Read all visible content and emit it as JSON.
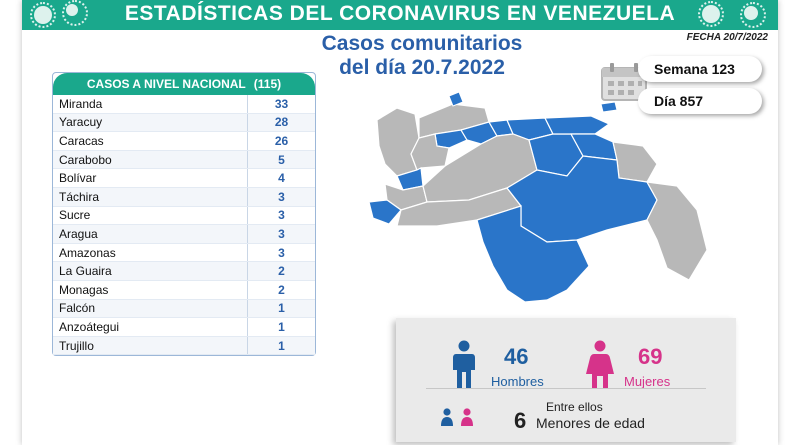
{
  "banner": {
    "title": "ESTADÍSTICAS DEL CORONAVIRUS EN VENEZUELA"
  },
  "subtitle": {
    "line1": "Casos comunitarios",
    "line2": "del día 20.7.2022"
  },
  "fecha": "FECHA 20/7/2022",
  "table": {
    "header_label": "CASOS A NIVEL NACIONAL",
    "header_total": "(115)",
    "rows": [
      {
        "state": "Miranda",
        "count": "33"
      },
      {
        "state": "Yaracuy",
        "count": "28"
      },
      {
        "state": "Caracas",
        "count": "26"
      },
      {
        "state": "Carabobo",
        "count": "5"
      },
      {
        "state": "Bolívar",
        "count": "4"
      },
      {
        "state": "Táchira",
        "count": "3"
      },
      {
        "state": "Sucre",
        "count": "3"
      },
      {
        "state": "Aragua",
        "count": "3"
      },
      {
        "state": "Amazonas",
        "count": "3"
      },
      {
        "state": "La Guaira",
        "count": "2"
      },
      {
        "state": "Monagas",
        "count": "2"
      },
      {
        "state": "Falcón",
        "count": "1"
      },
      {
        "state": "Anzoátegui",
        "count": "1"
      },
      {
        "state": "Trujillo",
        "count": "1"
      }
    ]
  },
  "week": "Semana 123",
  "day": "Día 857",
  "stats": {
    "men_count": "46",
    "men_label": "Hombres",
    "women_count": "69",
    "women_label": "Mujeres",
    "minors_top": "Entre ellos",
    "minors_count": "6",
    "minors_label": "Menores de edad"
  },
  "colors": {
    "accent": "#1aa88c",
    "blue_text": "#2a5fa8",
    "men": "#1f5fa0",
    "women": "#d6338a",
    "map_active": "#2a75c9",
    "map_inactive": "#b8b8b8"
  },
  "icons": [
    "virus-icon",
    "calendar-icon",
    "man-icon",
    "woman-icon"
  ]
}
